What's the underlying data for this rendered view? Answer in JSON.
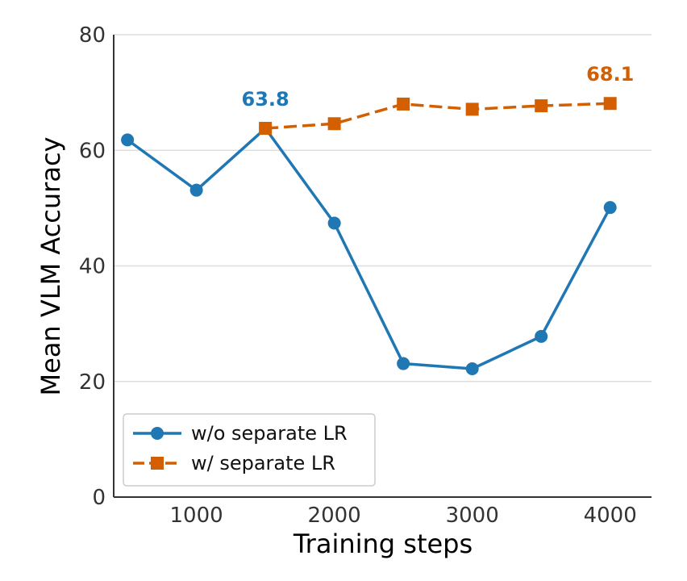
{
  "chart_data": {
    "type": "line",
    "xlabel": "Training steps",
    "ylabel": "Mean VLM Accuracy",
    "xlim": [
      400,
      4300
    ],
    "ylim": [
      0,
      80
    ],
    "xticks": [
      1000,
      2000,
      3000,
      4000
    ],
    "yticks": [
      0,
      20,
      40,
      60,
      80
    ],
    "grid": "horizontal",
    "legend_position": "lower-left",
    "series": [
      {
        "name": "w/o separate LR",
        "color": "#1f77b4",
        "marker": "circle",
        "line_style": "solid",
        "x": [
          500,
          1000,
          1500,
          2000,
          2500,
          3000,
          3500,
          4000
        ],
        "y": [
          61.8,
          53.1,
          63.8,
          47.4,
          23.1,
          22.2,
          27.8,
          50.1
        ]
      },
      {
        "name": "w/ separate LR",
        "color": "#d35f00",
        "marker": "square",
        "line_style": "dashed",
        "x": [
          1500,
          2000,
          2500,
          3000,
          3500,
          4000
        ],
        "y": [
          63.8,
          64.6,
          68.0,
          67.1,
          67.7,
          68.1
        ]
      }
    ],
    "annotations": [
      {
        "text": "63.8",
        "x": 1500,
        "y": 63.8,
        "series": 0
      },
      {
        "text": "68.1",
        "x": 4000,
        "y": 68.1,
        "series": 1
      }
    ]
  }
}
